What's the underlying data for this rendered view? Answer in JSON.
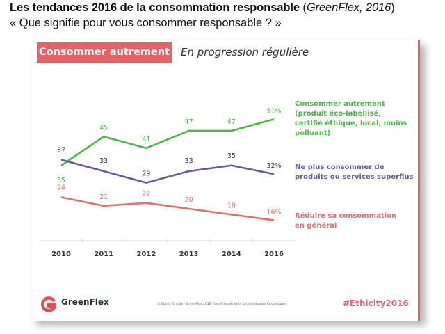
{
  "header": {
    "title_bold": "Les tendances 2016 de la consommation responsable",
    "title_paren_open": " (",
    "title_italic": "GreenFlex, 2016",
    "title_paren_close": ")",
    "subtitle": "« Que signifie pour vous consommer responsable ? »"
  },
  "slide": {
    "tag": "Consommer autrement",
    "tagline": "En progression régulière",
    "footer": {
      "brand": "GreenFlex",
      "logo_icon": "greenflex-g-logo",
      "credit": "© Etude Ethicity - GreenFlex 2016 - Les Français et la Consommation Responsable",
      "hashtag": "#Ethicity2016"
    },
    "colors": {
      "accent": "#e66268",
      "green": "#4cb848",
      "purple": "#6b5b95",
      "red": "#e0706e"
    }
  },
  "chart_data": {
    "type": "line",
    "title": "Consommer autrement — En progression régulière",
    "xlabel": "",
    "ylabel": "",
    "categories": [
      "2010",
      "2011",
      "2012",
      "2013",
      "2014",
      "2016"
    ],
    "grid": false,
    "legend_placement": "right",
    "series": [
      {
        "name": "Consommer autrement (produit éco-labellisé, certifié éthique, local, moins polluant)",
        "legend_lines": [
          "Consommer autrement",
          "(produit éco-labellisé,",
          "certifié éthique, local, moins",
          "polluant)"
        ],
        "color": "#4cb848",
        "values": [
          35,
          45,
          41,
          47,
          47,
          51
        ],
        "labels": [
          "35",
          "45",
          "41",
          "47",
          "47",
          "51%"
        ]
      },
      {
        "name": "Ne plus consommer de produits ou services superflus",
        "legend_lines": [
          "Ne plus consommer de",
          "produits ou services superflus"
        ],
        "color": "#6b5b95",
        "values": [
          37,
          33,
          29,
          33,
          35,
          32
        ],
        "labels": [
          "37",
          "33",
          "29",
          "33",
          "35",
          "32%"
        ]
      },
      {
        "name": "Réduire sa consommation en général",
        "legend_lines": [
          "Réduire sa consommation",
          "en général"
        ],
        "color": "#e0706e",
        "values": [
          24,
          21,
          22,
          20,
          18,
          16
        ],
        "labels": [
          "24",
          "21",
          "22",
          "20",
          "18",
          "16%"
        ]
      }
    ],
    "label_colors": [
      "#4cb848",
      "#3a3a4a",
      "#e0706e"
    ]
  }
}
